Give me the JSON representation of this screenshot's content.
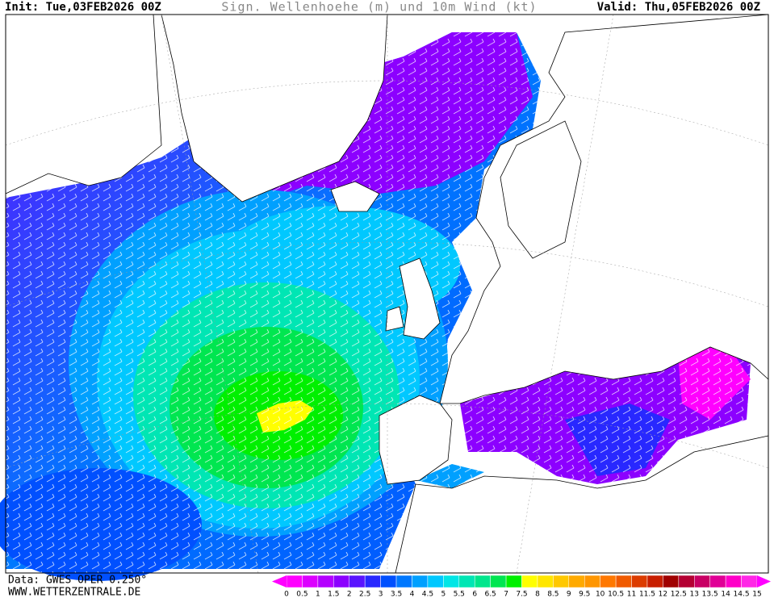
{
  "header": {
    "init": "Init: Tue,03FEB2026 00Z",
    "title": "Sign. Wellenhoehe (m) und 10m Wind (kt)",
    "valid": "Valid: Thu,05FEB2026 00Z"
  },
  "footer": {
    "source": "Data: GWES OPER 0.250°",
    "site": "WWW.WETTERZENTRALE.DE"
  },
  "legend": {
    "labels": [
      0,
      0.5,
      1,
      1.5,
      2,
      2.5,
      3,
      3.5,
      4,
      4.5,
      5,
      5.5,
      6,
      6.5,
      7,
      7.5,
      8,
      8.5,
      9,
      9.5,
      10,
      10.5,
      11,
      11.5,
      12,
      12.5,
      13,
      13.5,
      14,
      14.5,
      15
    ],
    "colors": [
      "#ff00ff",
      "#dc00ff",
      "#b400ff",
      "#8c00ff",
      "#5a14ff",
      "#2828ff",
      "#0050ff",
      "#0078ff",
      "#00a0ff",
      "#00c8ff",
      "#00e6e6",
      "#00e6b4",
      "#00e68c",
      "#00e650",
      "#00f000",
      "#ffff00",
      "#ffe600",
      "#ffc800",
      "#ffaa00",
      "#ff9600",
      "#ff7800",
      "#f05a00",
      "#dc3c00",
      "#c81e00",
      "#a00000",
      "#b40032",
      "#c80064",
      "#e00096",
      "#ff00c8",
      "#ff28e6"
    ],
    "under_color": "#ff00ff",
    "over_color": "#ff00ff"
  }
}
